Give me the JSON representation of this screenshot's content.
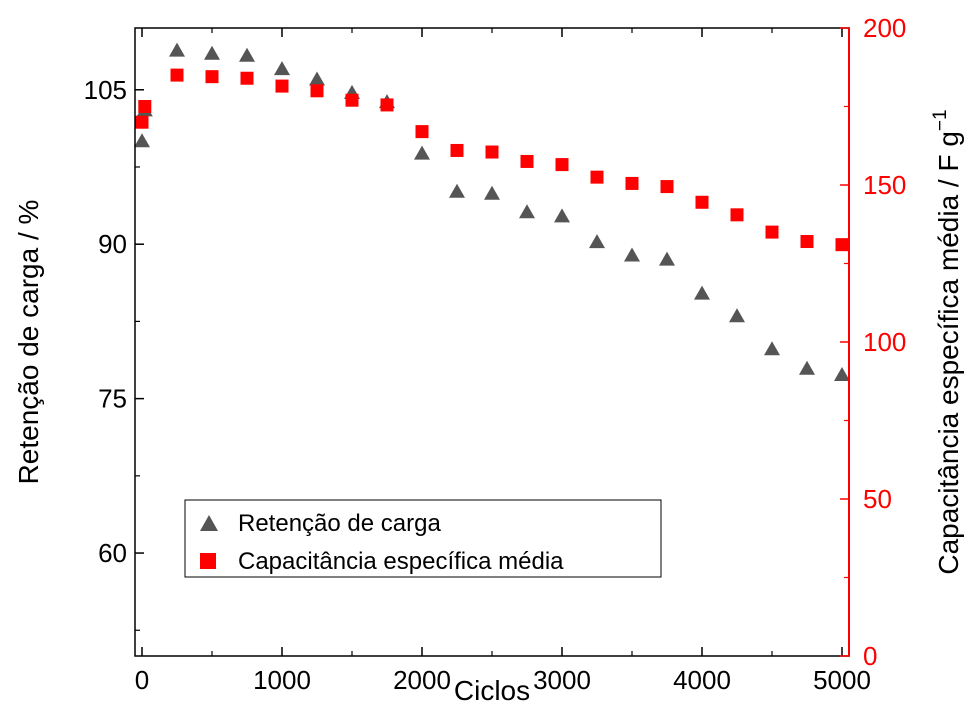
{
  "chart_data": {
    "type": "scatter",
    "xlabel": "Ciclos",
    "ylabel_left": "Retenção de carga / %",
    "ylabel_right_main": "Capacitância específica média / F g",
    "ylabel_right_sup": "−1",
    "xlim": [
      -50,
      5050
    ],
    "ylim_left": [
      50,
      111
    ],
    "ylim_right": [
      0,
      200
    ],
    "x_ticks": [
      0,
      1000,
      2000,
      3000,
      4000,
      5000
    ],
    "y_left_ticks": [
      60,
      75,
      90,
      105
    ],
    "y_right_ticks": [
      0,
      50,
      100,
      150,
      200
    ],
    "legend_position": "bottom-left",
    "grid": false,
    "series": [
      {
        "name": "Retenção de carga",
        "axis": "left",
        "marker": "triangle",
        "color": "#555555",
        "x": [
          0,
          20,
          250,
          500,
          750,
          1000,
          1250,
          1500,
          1750,
          2000,
          2250,
          2500,
          2750,
          3000,
          3250,
          3500,
          3750,
          4000,
          4250,
          4500,
          4750,
          5000
        ],
        "y": [
          100.0,
          103.0,
          108.8,
          108.5,
          108.3,
          107.0,
          106.0,
          104.7,
          103.8,
          98.8,
          95.1,
          94.9,
          93.1,
          92.7,
          90.2,
          88.9,
          88.5,
          85.2,
          83.0,
          79.8,
          77.9,
          77.3
        ]
      },
      {
        "name": "Capacitância específica média",
        "axis": "right",
        "marker": "square",
        "color": "#ff0000",
        "x": [
          0,
          20,
          250,
          500,
          750,
          1000,
          1250,
          1500,
          1750,
          2000,
          2250,
          2500,
          2750,
          3000,
          3250,
          3500,
          3750,
          4000,
          4250,
          4500,
          4750,
          5000
        ],
        "y": [
          170,
          175,
          185,
          184.5,
          184,
          181.5,
          180,
          177,
          175.5,
          167,
          161,
          160.5,
          157.5,
          156.5,
          152.5,
          150.5,
          149.5,
          144.5,
          140.5,
          135,
          132,
          131
        ]
      }
    ]
  }
}
